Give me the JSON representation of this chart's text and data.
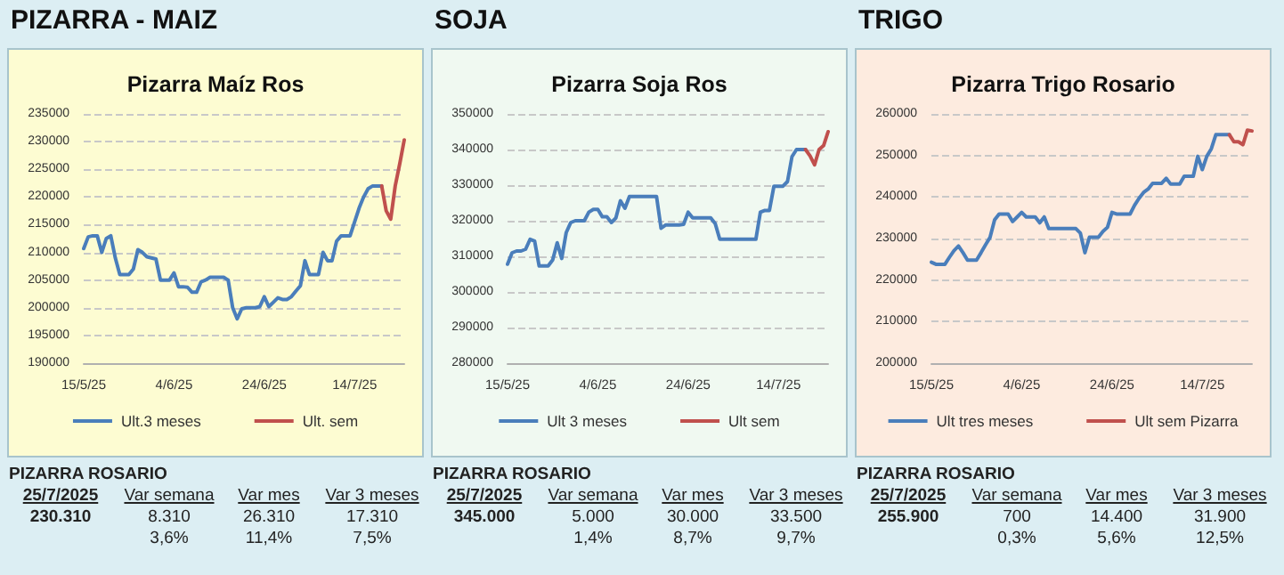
{
  "chart_data": [
    {
      "type": "line",
      "title": "PIZARRA - MAIZ",
      "subtitle": "Pizarra Maíz Ros",
      "x": [
        "2025-05-15",
        "2025-05-16",
        "2025-05-17",
        "2025-05-18",
        "2025-05-19",
        "2025-05-20",
        "2025-05-21",
        "2025-05-22",
        "2025-05-23",
        "2025-05-24",
        "2025-05-25",
        "2025-05-26",
        "2025-05-27",
        "2025-05-28",
        "2025-05-29",
        "2025-05-30",
        "2025-05-31",
        "2025-06-01",
        "2025-06-02",
        "2025-06-03",
        "2025-06-04",
        "2025-06-05",
        "2025-06-06",
        "2025-06-07",
        "2025-06-08",
        "2025-06-09",
        "2025-06-10",
        "2025-06-11",
        "2025-06-12",
        "2025-06-13",
        "2025-06-14",
        "2025-06-15",
        "2025-06-16",
        "2025-06-17",
        "2025-06-18",
        "2025-06-19",
        "2025-06-20",
        "2025-06-21",
        "2025-06-22",
        "2025-06-23",
        "2025-06-24",
        "2025-06-25",
        "2025-06-26",
        "2025-06-27",
        "2025-06-28",
        "2025-06-29",
        "2025-06-30",
        "2025-07-01",
        "2025-07-02",
        "2025-07-03",
        "2025-07-04",
        "2025-07-05",
        "2025-07-06",
        "2025-07-07",
        "2025-07-08",
        "2025-07-09",
        "2025-07-10",
        "2025-07-11",
        "2025-07-12",
        "2025-07-13",
        "2025-07-14",
        "2025-07-15",
        "2025-07-16",
        "2025-07-17",
        "2025-07-18",
        "2025-07-19",
        "2025-07-20"
      ],
      "series": [
        {
          "name": "Ult.3 meses",
          "color": "#4a7ebb",
          "values": [
            210700,
            212800,
            213000,
            213000,
            210000,
            212500,
            213000,
            209000,
            206000,
            206000,
            206000,
            207000,
            210500,
            210000,
            209200,
            209000,
            208800,
            205000,
            205000,
            205000,
            206300,
            203800,
            203800,
            203700,
            202800,
            202800,
            204700,
            205000,
            205500,
            205500,
            205500,
            205500,
            205000,
            200000,
            198000,
            199800,
            200000,
            200000,
            200000,
            200200,
            202000,
            200200,
            201000,
            201800,
            201500,
            201500,
            202000,
            203000,
            204000,
            208500,
            206000,
            206000,
            206000,
            210000,
            208500,
            208500,
            212000,
            213000,
            213000,
            213000,
            215500,
            218000,
            220000,
            221500,
            222000,
            222000,
            222000
          ]
        },
        {
          "name": "Ult. sem",
          "color": "#c0504d",
          "x": [
            "2025-07-20",
            "2025-07-21",
            "2025-07-22",
            "2025-07-23",
            "2025-07-24",
            "2025-07-25"
          ],
          "values": [
            222000,
            217500,
            216000,
            222000,
            226000,
            230310
          ]
        }
      ],
      "xlim": [
        "2025-05-15",
        "2025-07-25"
      ],
      "xticks": [
        {
          "value": "2025-05-15",
          "label": "15/5/25"
        },
        {
          "value": "2025-06-04",
          "label": "4/6/25"
        },
        {
          "value": "2025-06-24",
          "label": "24/6/25"
        },
        {
          "value": "2025-07-14",
          "label": "14/7/25"
        }
      ],
      "ylim": [
        190000,
        235000
      ],
      "yticks": [
        190000,
        195000,
        200000,
        205000,
        210000,
        215000,
        220000,
        225000,
        230000,
        235000
      ],
      "grid": "y",
      "legend": "bottom",
      "marker": "none",
      "line_style": "solid",
      "annotations": [
        "PIZARRA ROSARIO",
        "25/7/2025",
        "Var semana",
        "Var mes",
        "Var 3 meses",
        "230.310",
        "8.310",
        "26.310",
        "17.310",
        "3,6%",
        "11,4%",
        "7,5%"
      ]
    },
    {
      "type": "line",
      "title": "SOJA",
      "subtitle": "Pizarra Soja Ros",
      "x": [
        "2025-05-15",
        "2025-05-16",
        "2025-05-17",
        "2025-05-18",
        "2025-05-19",
        "2025-05-20",
        "2025-05-21",
        "2025-05-22",
        "2025-05-23",
        "2025-05-24",
        "2025-05-25",
        "2025-05-26",
        "2025-05-27",
        "2025-05-28",
        "2025-05-29",
        "2025-05-30",
        "2025-05-31",
        "2025-06-01",
        "2025-06-02",
        "2025-06-03",
        "2025-06-04",
        "2025-06-05",
        "2025-06-06",
        "2025-06-07",
        "2025-06-08",
        "2025-06-09",
        "2025-06-10",
        "2025-06-11",
        "2025-06-12",
        "2025-06-13",
        "2025-06-14",
        "2025-06-15",
        "2025-06-16",
        "2025-06-17",
        "2025-06-18",
        "2025-06-19",
        "2025-06-20",
        "2025-06-21",
        "2025-06-22",
        "2025-06-23",
        "2025-06-24",
        "2025-06-25",
        "2025-06-26",
        "2025-06-27",
        "2025-06-28",
        "2025-06-29",
        "2025-06-30",
        "2025-07-01",
        "2025-07-02",
        "2025-07-03",
        "2025-07-04",
        "2025-07-05",
        "2025-07-06",
        "2025-07-07",
        "2025-07-08",
        "2025-07-09",
        "2025-07-10",
        "2025-07-11",
        "2025-07-12",
        "2025-07-13",
        "2025-07-14",
        "2025-07-15",
        "2025-07-16",
        "2025-07-17",
        "2025-07-18",
        "2025-07-19",
        "2025-07-20"
      ],
      "series": [
        {
          "name": "Ult 3 meses",
          "color": "#4a7ebb",
          "values": [
            307800,
            311000,
            311500,
            311500,
            312000,
            314800,
            314300,
            307300,
            307300,
            307300,
            309000,
            313800,
            309400,
            316700,
            319500,
            320000,
            320000,
            320000,
            322400,
            323200,
            323200,
            321100,
            321100,
            319500,
            320800,
            325600,
            323500,
            326800,
            326800,
            326800,
            326800,
            326800,
            326800,
            326800,
            317900,
            318800,
            318800,
            318800,
            318800,
            319000,
            322400,
            320800,
            320800,
            320800,
            320800,
            320800,
            319200,
            314800,
            314800,
            314800,
            314800,
            314800,
            314800,
            314800,
            314800,
            314800,
            322400,
            322900,
            322900,
            329700,
            329700,
            329700,
            331000,
            338000,
            340000,
            340000,
            340000
          ]
        },
        {
          "name": "Ult sem",
          "color": "#c0504d",
          "x": [
            "2025-07-20",
            "2025-07-21",
            "2025-07-22",
            "2025-07-23",
            "2025-07-24",
            "2025-07-25"
          ],
          "values": [
            340000,
            338200,
            335700,
            340000,
            341100,
            345000
          ]
        }
      ],
      "xlim": [
        "2025-05-15",
        "2025-07-25"
      ],
      "xticks": [
        {
          "value": "2025-05-15",
          "label": "15/5/25"
        },
        {
          "value": "2025-06-04",
          "label": "4/6/25"
        },
        {
          "value": "2025-06-24",
          "label": "24/6/25"
        },
        {
          "value": "2025-07-14",
          "label": "14/7/25"
        }
      ],
      "ylim": [
        280000,
        350000
      ],
      "yticks": [
        280000,
        290000,
        300000,
        310000,
        320000,
        330000,
        340000,
        350000
      ],
      "grid": "y",
      "legend": "bottom",
      "marker": "none",
      "line_style": "solid",
      "annotations": [
        "PIZARRA ROSARIO",
        "25/7/2025",
        "Var semana",
        "Var mes",
        "Var 3 meses",
        "345.000",
        "5.000",
        "30.000",
        "33.500",
        "1,4%",
        "8,7%",
        "9,7%"
      ]
    },
    {
      "type": "line",
      "title": "TRIGO",
      "subtitle": "Pizarra Trigo Rosario",
      "x": [
        "2025-05-15",
        "2025-05-16",
        "2025-05-17",
        "2025-05-18",
        "2025-05-19",
        "2025-05-20",
        "2025-05-21",
        "2025-05-22",
        "2025-05-23",
        "2025-05-24",
        "2025-05-25",
        "2025-05-26",
        "2025-05-27",
        "2025-05-28",
        "2025-05-29",
        "2025-05-30",
        "2025-05-31",
        "2025-06-01",
        "2025-06-02",
        "2025-06-03",
        "2025-06-04",
        "2025-06-05",
        "2025-06-06",
        "2025-06-07",
        "2025-06-08",
        "2025-06-09",
        "2025-06-10",
        "2025-06-11",
        "2025-06-12",
        "2025-06-13",
        "2025-06-14",
        "2025-06-15",
        "2025-06-16",
        "2025-06-17",
        "2025-06-18",
        "2025-06-19",
        "2025-06-20",
        "2025-06-21",
        "2025-06-22",
        "2025-06-23",
        "2025-06-24",
        "2025-06-25",
        "2025-06-26",
        "2025-06-27",
        "2025-06-28",
        "2025-06-29",
        "2025-06-30",
        "2025-07-01",
        "2025-07-02",
        "2025-07-03",
        "2025-07-04",
        "2025-07-05",
        "2025-07-06",
        "2025-07-07",
        "2025-07-08",
        "2025-07-09",
        "2025-07-10",
        "2025-07-11",
        "2025-07-12",
        "2025-07-13",
        "2025-07-14",
        "2025-07-15",
        "2025-07-16",
        "2025-07-17",
        "2025-07-18",
        "2025-07-19",
        "2025-07-20"
      ],
      "series": [
        {
          "name": "Ult tres meses",
          "color": "#4a7ebb",
          "values": [
            224300,
            223800,
            223800,
            223800,
            225500,
            227100,
            228200,
            226600,
            224800,
            224800,
            224800,
            226600,
            228500,
            230300,
            234500,
            235900,
            235900,
            235900,
            234100,
            235200,
            236300,
            235200,
            235200,
            235200,
            233800,
            235200,
            232400,
            232400,
            232400,
            232400,
            232400,
            232400,
            232400,
            231300,
            226600,
            230300,
            230300,
            230300,
            231700,
            232700,
            236300,
            235900,
            235900,
            235900,
            235900,
            238000,
            239700,
            241100,
            241900,
            243300,
            243300,
            243300,
            244500,
            243100,
            243100,
            243100,
            245000,
            245000,
            245000,
            249800,
            246600,
            249800,
            251600,
            255000,
            255000,
            255000,
            255000
          ]
        },
        {
          "name": "Ult sem Pizarra",
          "color": "#c0504d",
          "x": [
            "2025-07-20",
            "2025-07-21",
            "2025-07-22",
            "2025-07-23",
            "2025-07-24",
            "2025-07-25"
          ],
          "values": [
            255000,
            253300,
            253300,
            252600,
            256100,
            255900
          ]
        }
      ],
      "xlim": [
        "2025-05-15",
        "2025-07-25"
      ],
      "xticks": [
        {
          "value": "2025-05-15",
          "label": "15/5/25"
        },
        {
          "value": "2025-06-04",
          "label": "4/6/25"
        },
        {
          "value": "2025-06-24",
          "label": "24/6/25"
        },
        {
          "value": "2025-07-14",
          "label": "14/7/25"
        }
      ],
      "ylim": [
        200000,
        260000
      ],
      "yticks": [
        200000,
        210000,
        220000,
        230000,
        240000,
        250000,
        260000
      ],
      "grid": "y",
      "legend": "bottom",
      "marker": "none",
      "line_style": "solid",
      "annotations": [
        "PIZARRA ROSARIO",
        "25/7/2025",
        "Var semana",
        "Var mes",
        "Var 3 meses",
        "255.900",
        "700",
        "14.400",
        "31.900",
        "0,3%",
        "5,6%",
        "12,5%"
      ]
    }
  ]
}
